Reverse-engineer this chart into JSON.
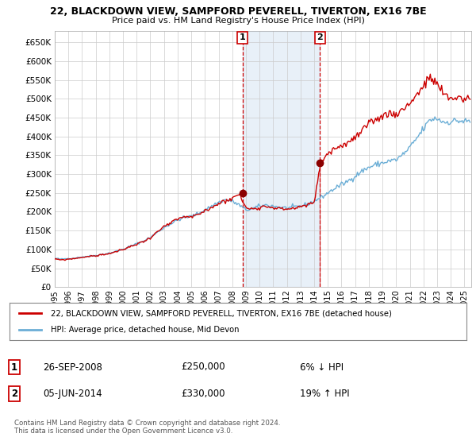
{
  "title_line1": "22, BLACKDOWN VIEW, SAMPFORD PEVERELL, TIVERTON, EX16 7BE",
  "title_line2": "Price paid vs. HM Land Registry's House Price Index (HPI)",
  "ytick_values": [
    0,
    50000,
    100000,
    150000,
    200000,
    250000,
    300000,
    350000,
    400000,
    450000,
    500000,
    550000,
    600000,
    650000
  ],
  "ylim": [
    0,
    680000
  ],
  "xlim_start": 1995.0,
  "xlim_end": 2025.5,
  "hpi_color": "#6baed6",
  "price_color": "#cc0000",
  "sale1_x": 2008.74,
  "sale1_y": 250000,
  "sale1_label": "1",
  "sale2_x": 2014.43,
  "sale2_y": 330000,
  "sale2_label": "2",
  "dashed_color": "#cc0000",
  "shaded_color": "#c6dbef",
  "shaded_alpha": 0.4,
  "legend_line1": "22, BLACKDOWN VIEW, SAMPFORD PEVERELL, TIVERTON, EX16 7BE (detached house)",
  "legend_line2": "HPI: Average price, detached house, Mid Devon",
  "annotation1_date": "26-SEP-2008",
  "annotation1_price": "£250,000",
  "annotation1_hpi": "6% ↓ HPI",
  "annotation2_date": "05-JUN-2014",
  "annotation2_price": "£330,000",
  "annotation2_hpi": "19% ↑ HPI",
  "footer": "Contains HM Land Registry data © Crown copyright and database right 2024.\nThis data is licensed under the Open Government Licence v3.0.",
  "bg_color": "#ffffff",
  "grid_color": "#cccccc",
  "hpi_refs": [
    [
      1995.0,
      76000
    ],
    [
      1995.5,
      74000
    ],
    [
      1996.0,
      76000
    ],
    [
      1996.5,
      77000
    ],
    [
      1997.0,
      80000
    ],
    [
      1997.5,
      82000
    ],
    [
      1998.0,
      84000
    ],
    [
      1998.5,
      87000
    ],
    [
      1999.0,
      90000
    ],
    [
      1999.5,
      95000
    ],
    [
      2000.0,
      100000
    ],
    [
      2000.5,
      108000
    ],
    [
      2001.0,
      115000
    ],
    [
      2001.5,
      122000
    ],
    [
      2002.0,
      132000
    ],
    [
      2002.5,
      145000
    ],
    [
      2003.0,
      158000
    ],
    [
      2003.5,
      168000
    ],
    [
      2004.0,
      178000
    ],
    [
      2004.5,
      185000
    ],
    [
      2005.0,
      188000
    ],
    [
      2005.5,
      195000
    ],
    [
      2006.0,
      205000
    ],
    [
      2006.5,
      215000
    ],
    [
      2007.0,
      225000
    ],
    [
      2007.5,
      232000
    ],
    [
      2008.0,
      228000
    ],
    [
      2008.5,
      218000
    ],
    [
      2009.0,
      205000
    ],
    [
      2009.5,
      208000
    ],
    [
      2010.0,
      215000
    ],
    [
      2010.5,
      218000
    ],
    [
      2011.0,
      215000
    ],
    [
      2011.5,
      212000
    ],
    [
      2012.0,
      210000
    ],
    [
      2012.5,
      212000
    ],
    [
      2013.0,
      215000
    ],
    [
      2013.5,
      220000
    ],
    [
      2014.0,
      228000
    ],
    [
      2014.5,
      238000
    ],
    [
      2015.0,
      250000
    ],
    [
      2015.5,
      262000
    ],
    [
      2016.0,
      272000
    ],
    [
      2016.5,
      282000
    ],
    [
      2017.0,
      295000
    ],
    [
      2017.5,
      308000
    ],
    [
      2018.0,
      318000
    ],
    [
      2018.5,
      325000
    ],
    [
      2019.0,
      330000
    ],
    [
      2019.5,
      335000
    ],
    [
      2020.0,
      338000
    ],
    [
      2020.5,
      352000
    ],
    [
      2021.0,
      370000
    ],
    [
      2021.5,
      395000
    ],
    [
      2022.0,
      420000
    ],
    [
      2022.5,
      445000
    ],
    [
      2023.0,
      448000
    ],
    [
      2023.5,
      438000
    ],
    [
      2024.0,
      440000
    ],
    [
      2024.5,
      442000
    ],
    [
      2025.0,
      440000
    ]
  ],
  "price_refs": [
    [
      1995.0,
      74000
    ],
    [
      1995.5,
      72000
    ],
    [
      1996.0,
      74000
    ],
    [
      1996.5,
      76000
    ],
    [
      1997.0,
      79000
    ],
    [
      1997.5,
      81000
    ],
    [
      1998.0,
      83000
    ],
    [
      1998.5,
      86000
    ],
    [
      1999.0,
      89000
    ],
    [
      1999.5,
      94000
    ],
    [
      2000.0,
      99000
    ],
    [
      2000.5,
      107000
    ],
    [
      2001.0,
      114000
    ],
    [
      2001.5,
      121000
    ],
    [
      2002.0,
      131000
    ],
    [
      2002.5,
      146000
    ],
    [
      2003.0,
      160000
    ],
    [
      2003.5,
      170000
    ],
    [
      2004.0,
      180000
    ],
    [
      2004.5,
      187000
    ],
    [
      2005.0,
      185000
    ],
    [
      2005.5,
      192000
    ],
    [
      2006.0,
      202000
    ],
    [
      2006.5,
      212000
    ],
    [
      2007.0,
      222000
    ],
    [
      2007.5,
      230000
    ],
    [
      2008.0,
      235000
    ],
    [
      2008.5,
      248000
    ],
    [
      2009.0,
      210000
    ],
    [
      2009.5,
      208000
    ],
    [
      2010.0,
      212000
    ],
    [
      2010.5,
      215000
    ],
    [
      2011.0,
      212000
    ],
    [
      2011.5,
      208000
    ],
    [
      2012.0,
      207000
    ],
    [
      2012.5,
      210000
    ],
    [
      2013.0,
      212000
    ],
    [
      2013.5,
      218000
    ],
    [
      2014.0,
      225000
    ],
    [
      2014.5,
      335000
    ],
    [
      2015.0,
      355000
    ],
    [
      2015.5,
      368000
    ],
    [
      2016.0,
      375000
    ],
    [
      2016.5,
      385000
    ],
    [
      2017.0,
      395000
    ],
    [
      2017.5,
      415000
    ],
    [
      2018.0,
      430000
    ],
    [
      2018.5,
      445000
    ],
    [
      2019.0,
      455000
    ],
    [
      2019.5,
      462000
    ],
    [
      2020.0,
      460000
    ],
    [
      2020.5,
      472000
    ],
    [
      2021.0,
      490000
    ],
    [
      2021.5,
      510000
    ],
    [
      2022.0,
      535000
    ],
    [
      2022.5,
      555000
    ],
    [
      2023.0,
      540000
    ],
    [
      2023.5,
      510000
    ],
    [
      2024.0,
      500000
    ],
    [
      2024.5,
      505000
    ],
    [
      2025.0,
      500000
    ]
  ]
}
